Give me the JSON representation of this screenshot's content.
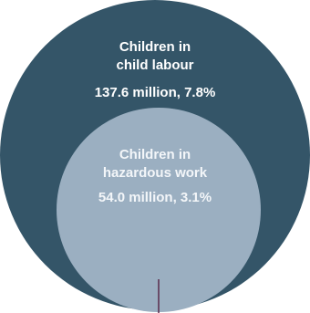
{
  "outer": {
    "title_line1": "Children in",
    "title_line2": "child labour",
    "value": "137.6 million, 7.8%"
  },
  "inner": {
    "title_line1": "Children in",
    "title_line2": "hazardous work",
    "value": "54.0 million, 3.1%"
  },
  "colors": {
    "outer_fill": "#345568",
    "inner_fill": "#9bafc1",
    "marker_line": "#5a2a4a"
  }
}
